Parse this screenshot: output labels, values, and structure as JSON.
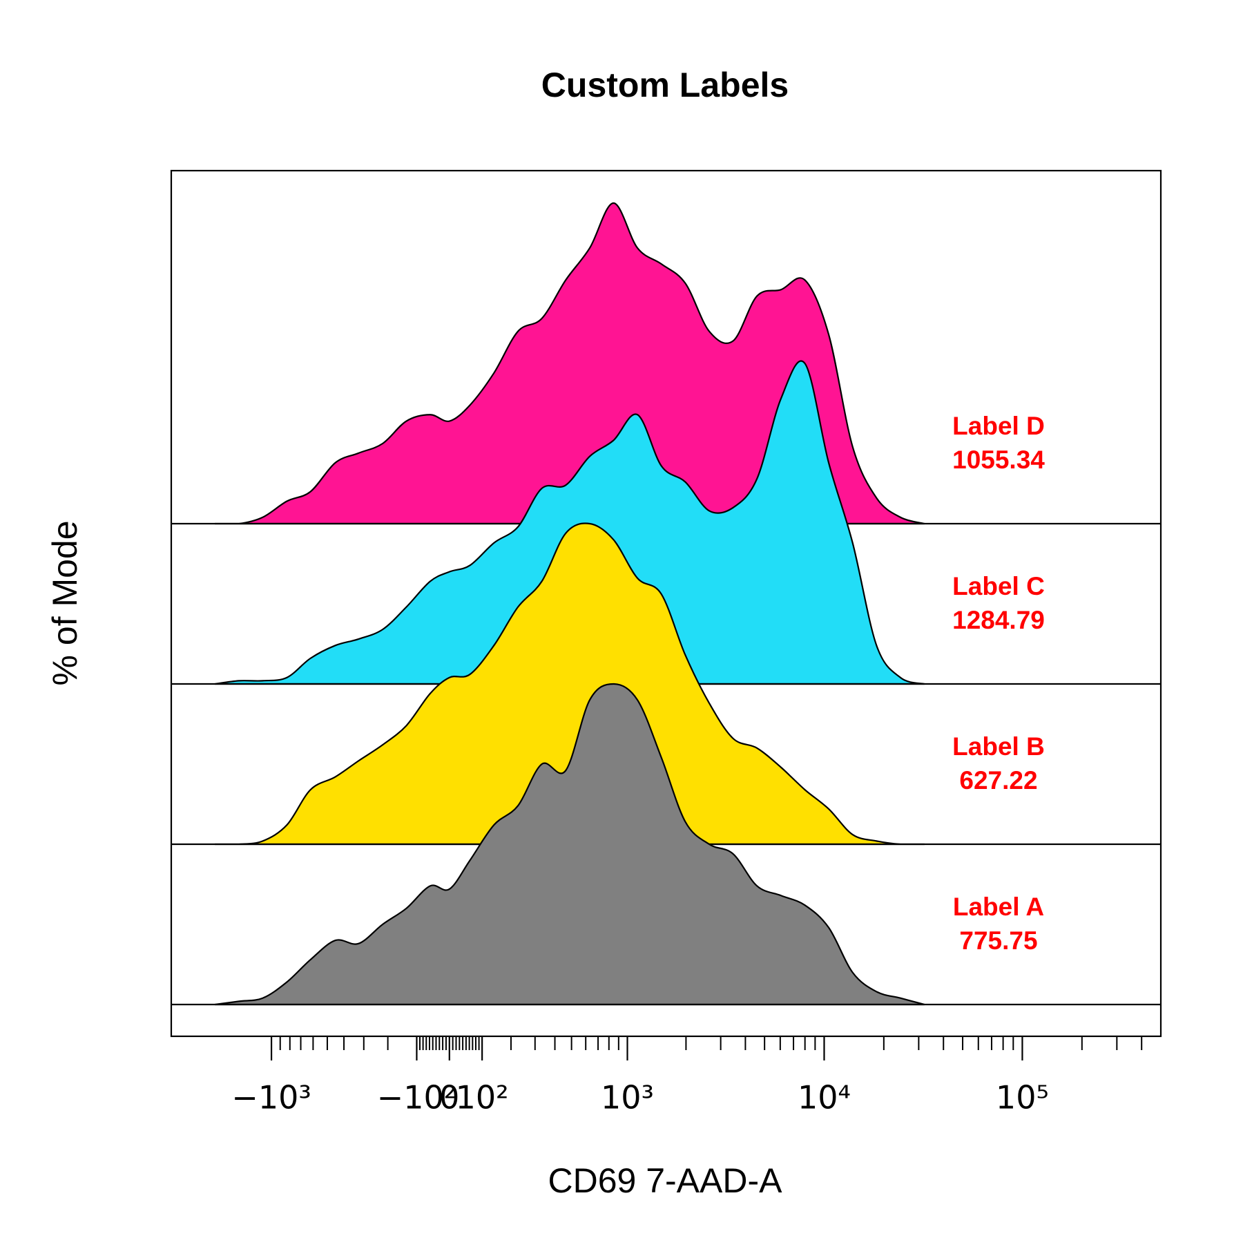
{
  "chart_data": {
    "type": "density-ridges",
    "title": "Custom Labels",
    "x_label": "CD69 7-AAD-A",
    "y_label": "% of Mode",
    "xscale": "biexponential",
    "xlim": [
      -3250,
      500000
    ],
    "xticks": [
      {
        "value": -1000,
        "label": "−10³"
      },
      {
        "value": -100,
        "label": "−10²"
      },
      0,
      {
        "value": 100,
        "label": "10²"
      },
      {
        "value": 1000,
        "label": "10³"
      },
      {
        "value": 10000,
        "label": "10⁴"
      },
      {
        "value": 100000,
        "label": "10⁵"
      }
    ],
    "minor_xticks": [
      -900,
      -800,
      -700,
      -600,
      -500,
      -400,
      -300,
      -200,
      -90,
      -80,
      -70,
      -60,
      -50,
      -40,
      -30,
      -20,
      -10,
      10,
      20,
      30,
      40,
      50,
      60,
      70,
      80,
      90,
      200,
      300,
      400,
      500,
      600,
      700,
      800,
      900,
      2000,
      3000,
      4000,
      5000,
      6000,
      7000,
      8000,
      9000,
      20000,
      30000,
      40000,
      50000,
      60000,
      70000,
      80000,
      90000,
      200000,
      300000,
      400000
    ],
    "x": [
      -1950,
      -1470,
      -1110,
      -830,
      -620,
      -450,
      -325,
      -220,
      -134,
      -58,
      0,
      62,
      139,
      227,
      332,
      463,
      631,
      846,
      1128,
      1498,
      1984,
      2624,
      3465,
      4577,
      6050,
      7990,
      10540,
      13920,
      18380,
      24260,
      32050
    ],
    "series": [
      {
        "name": "Label A",
        "stat": 775.75,
        "color": "#808080",
        "values": [
          0,
          1,
          2,
          7,
          14,
          20,
          19,
          25,
          30,
          37,
          36,
          45,
          56,
          62,
          75,
          73,
          95,
          100,
          95,
          77,
          57,
          50,
          47,
          37,
          34,
          31,
          24,
          10,
          4,
          2,
          0
        ]
      },
      {
        "name": "Label B",
        "stat": 627.22,
        "color": "#FFE000",
        "values": [
          0,
          0,
          1,
          6,
          17,
          21,
          26,
          31,
          37,
          47,
          52,
          53,
          62,
          74,
          82,
          97,
          100,
          95,
          83,
          78,
          59,
          44,
          33,
          30,
          24,
          17,
          11,
          3,
          1,
          0,
          0
        ]
      },
      {
        "name": "Label C",
        "stat": 1284.79,
        "color": "#22DDF7",
        "values": [
          0,
          1,
          1,
          2,
          8,
          12,
          14,
          17,
          24,
          32,
          35,
          37,
          44,
          49,
          61,
          62,
          71,
          76,
          84,
          68,
          63,
          54,
          55,
          64,
          89,
          100,
          69,
          44,
          12,
          2,
          0
        ]
      },
      {
        "name": "Label D",
        "stat": 1055.34,
        "color": "#FF1493",
        "values": [
          0,
          0,
          2,
          7,
          10,
          19,
          22,
          25,
          32,
          34,
          32,
          37,
          47,
          60,
          64,
          76,
          86,
          100,
          86,
          81,
          75,
          60,
          57,
          71,
          73,
          76,
          59,
          24,
          8,
          2,
          0
        ]
      }
    ]
  }
}
